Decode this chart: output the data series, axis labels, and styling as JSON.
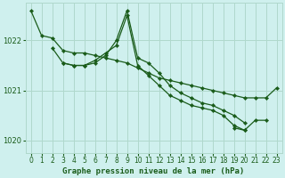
{
  "title": "Graphe pression niveau de la mer (hPa)",
  "bg_color": "#cff0ee",
  "grid_color": "#b0d8cc",
  "line_color": "#1a5c1a",
  "xlim": [
    -0.5,
    23.5
  ],
  "ylim": [
    1019.75,
    1022.75
  ],
  "yticks": [
    1020,
    1021,
    1022
  ],
  "xticks": [
    0,
    1,
    2,
    3,
    4,
    5,
    6,
    7,
    8,
    9,
    10,
    11,
    12,
    13,
    14,
    15,
    16,
    17,
    18,
    19,
    20,
    21,
    22,
    23
  ],
  "series": [
    [
      1022.6,
      1022.1,
      1022.05,
      1021.8,
      1021.75,
      1021.75,
      1021.7,
      1021.65,
      1021.6,
      1021.55,
      1021.45,
      1021.35,
      1021.25,
      1021.2,
      1021.15,
      1021.1,
      1021.05,
      1021.0,
      1020.95,
      1020.9,
      1020.85,
      1020.85,
      1020.85,
      1021.05
    ],
    [
      null,
      null,
      1021.85,
      1021.55,
      1021.5,
      1021.5,
      1021.55,
      1021.7,
      1022.0,
      1022.6,
      1021.65,
      1021.55,
      1021.35,
      1021.1,
      1020.95,
      1020.85,
      1020.75,
      1020.7,
      1020.6,
      1020.5,
      1020.35,
      null,
      null,
      null
    ],
    [
      null,
      null,
      null,
      1021.55,
      1021.5,
      1021.5,
      1021.6,
      1021.75,
      1021.9,
      1022.5,
      1021.5,
      1021.3,
      1021.1,
      1020.9,
      1020.8,
      1020.7,
      1020.65,
      1020.6,
      1020.5,
      1020.3,
      1020.2,
      1020.4,
      1020.4,
      null
    ],
    [
      null,
      null,
      null,
      null,
      null,
      null,
      null,
      null,
      null,
      null,
      null,
      null,
      null,
      null,
      null,
      null,
      null,
      null,
      null,
      1020.25,
      1020.2,
      null,
      null,
      null
    ]
  ]
}
